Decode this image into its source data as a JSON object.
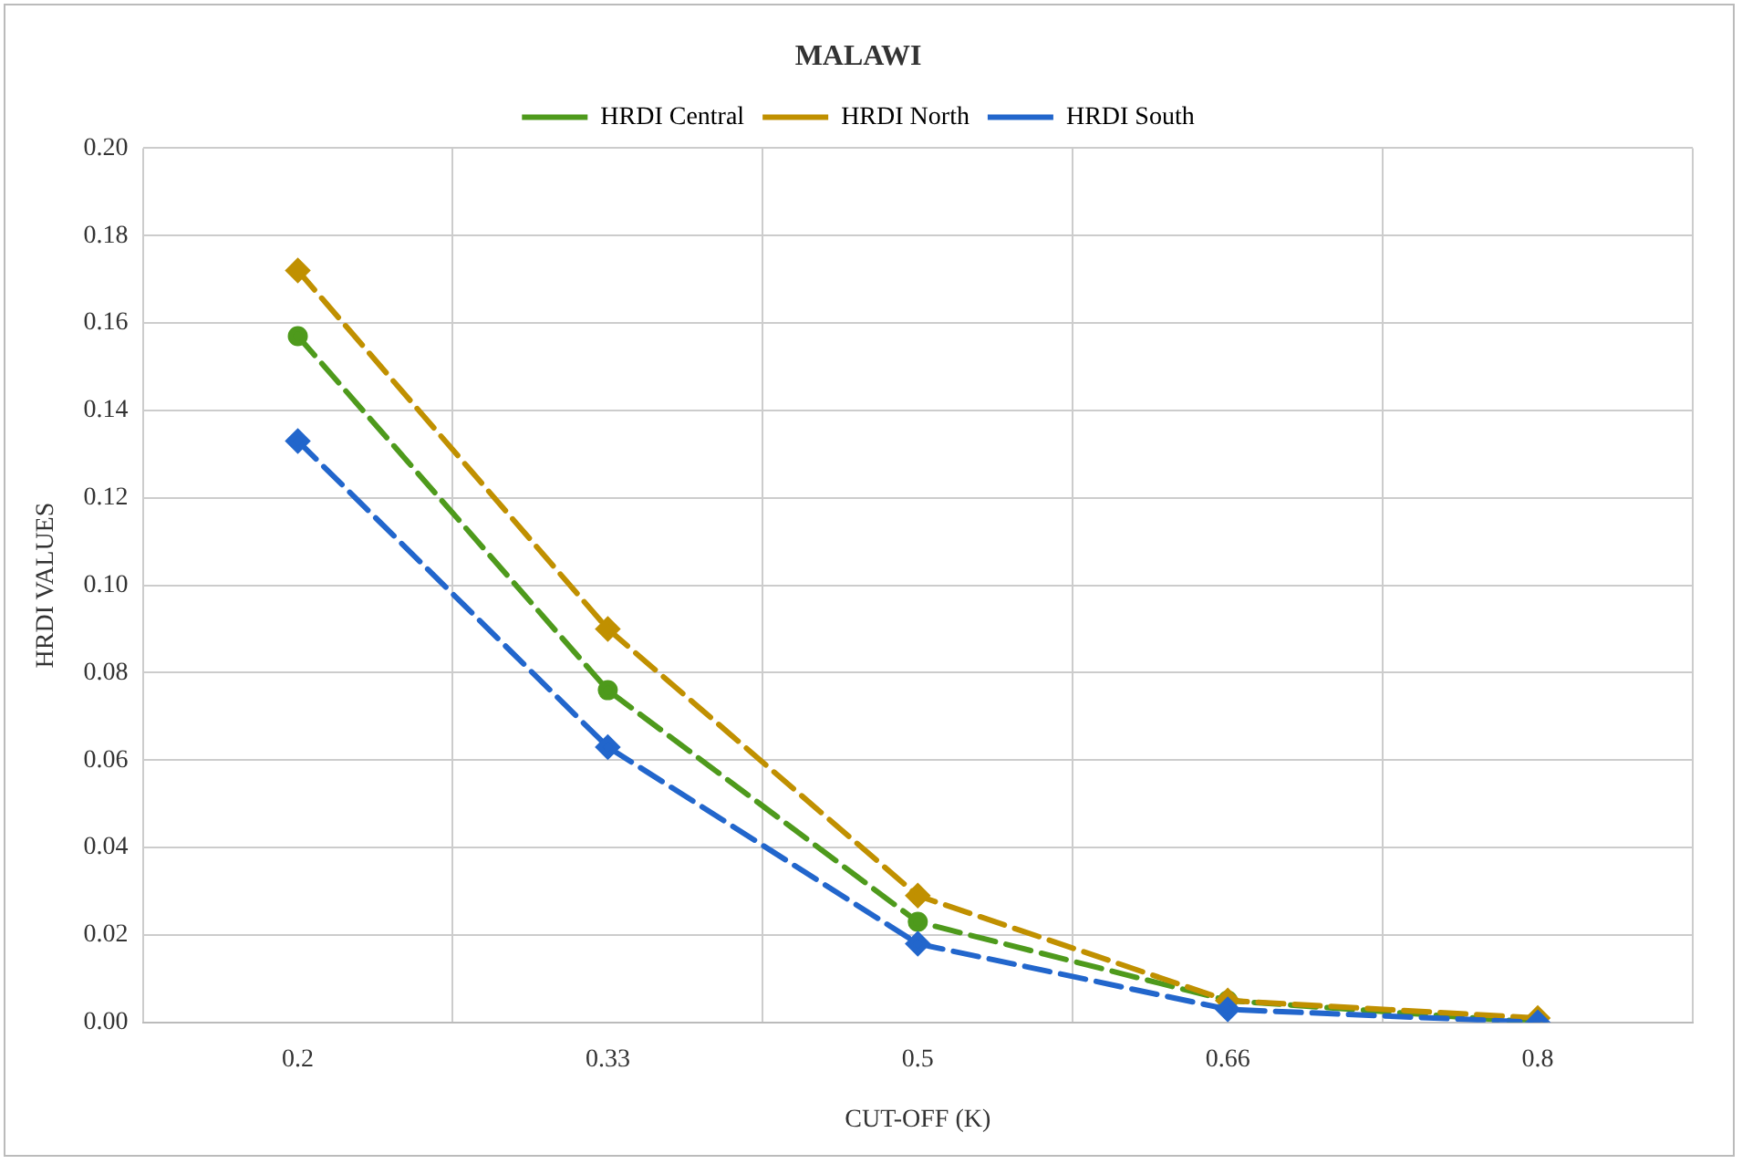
{
  "chart_data": {
    "type": "line",
    "title": "MALAWI",
    "xlabel": "CUT-OFF (K)",
    "ylabel": "HRDI VALUES",
    "categories": [
      "0.2",
      "0.33",
      "0.5",
      "0.66",
      "0.8"
    ],
    "series": [
      {
        "name": "HRDI Central",
        "color": "#4e9a1c",
        "marker": "circle",
        "line_style": "dashed",
        "values": [
          0.157,
          0.076,
          0.023,
          0.005,
          0.0
        ]
      },
      {
        "name": "HRDI North",
        "color": "#c09000",
        "marker": "diamond",
        "line_style": "dashed",
        "values": [
          0.172,
          0.09,
          0.029,
          0.005,
          0.001
        ]
      },
      {
        "name": "HRDI South",
        "color": "#2266cc",
        "marker": "diamond",
        "line_style": "dashed",
        "values": [
          0.133,
          0.063,
          0.018,
          0.003,
          0.0
        ]
      }
    ],
    "ylim": [
      0,
      0.2
    ],
    "yticks": [
      {
        "value": 0,
        "label": "0.00"
      },
      {
        "value": 0.02,
        "label": "0.02"
      },
      {
        "value": 0.04,
        "label": "0.04"
      },
      {
        "value": 0.06,
        "label": "0.06"
      },
      {
        "value": 0.08,
        "label": "0.08"
      },
      {
        "value": 0.1,
        "label": "0.10"
      },
      {
        "value": 0.12,
        "label": "0.12"
      },
      {
        "value": 0.14,
        "label": "0.14"
      },
      {
        "value": 0.16,
        "label": "0.16"
      },
      {
        "value": 0.18,
        "label": "0.18"
      },
      {
        "value": 0.2,
        "label": "0.20"
      }
    ],
    "grid": true,
    "legend": "top"
  }
}
